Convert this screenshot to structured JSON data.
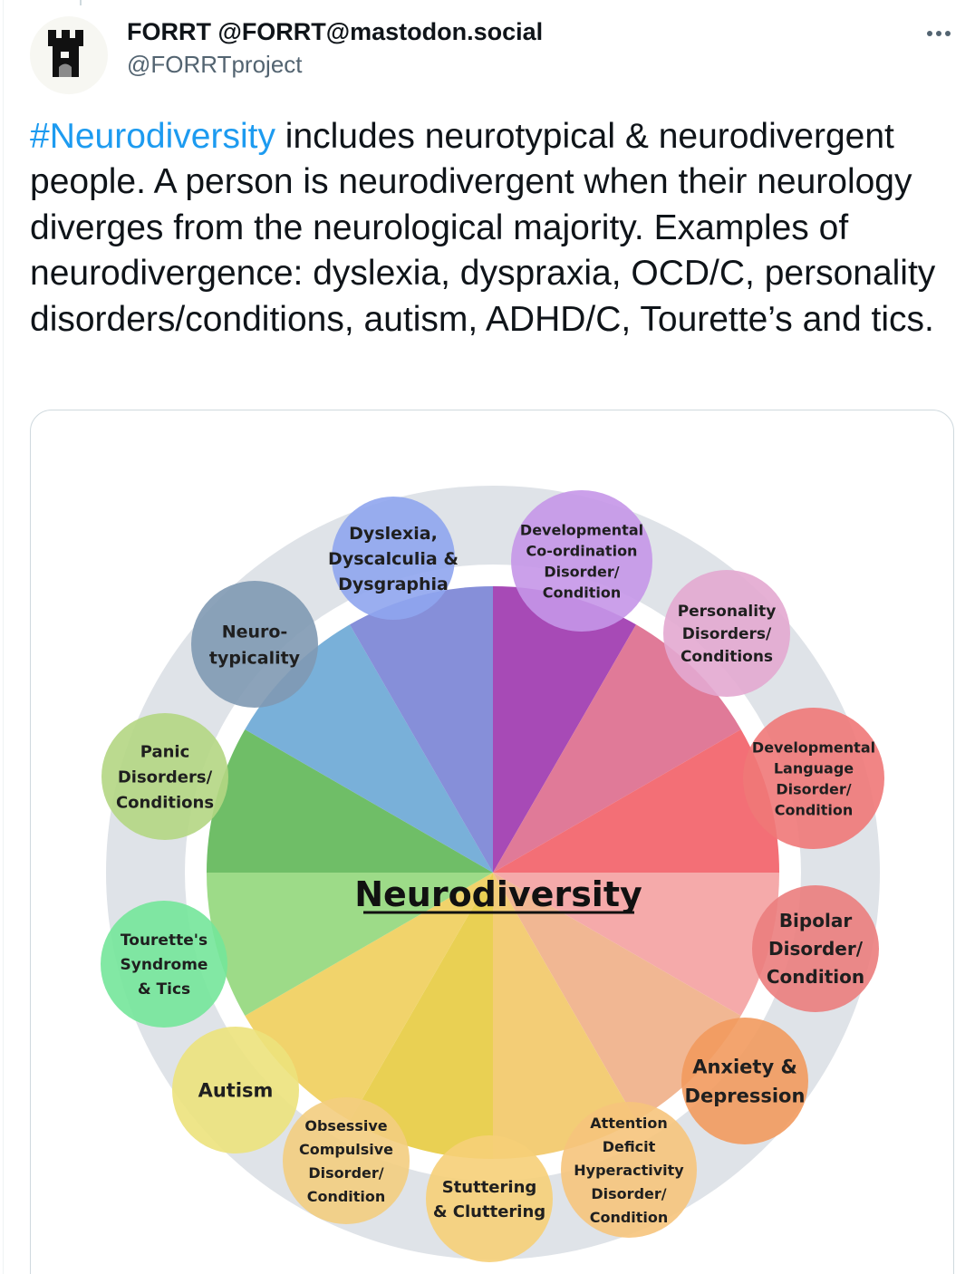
{
  "author": {
    "display_name": "FORRT @FORRT@mastodon.social",
    "handle": "@FORRTproject"
  },
  "tweet": {
    "hashtag": "#Neurodiversity",
    "text": " includes neurotypical & neurodivergent people. A person is neurodivergent when their neurology diverges from the neurological majority. Examples of neurodivergence: dyslexia, dyspraxia, OCD/C, personality disorders/conditions, autism, ADHD/C, Tourette’s and tics."
  },
  "diagram": {
    "title": "Neurodiversity",
    "colors": {
      "ring": "#dfe3e8",
      "wedges": [
        "#a03bb0",
        "#dd6f8f",
        "#f2636a",
        "#f4a3a3",
        "#f0b18a",
        "#f2c96a",
        "#e7cc44",
        "#f0cf5e",
        "#95d87e",
        "#63b85a",
        "#6ea9d6",
        "#7c85d6"
      ]
    },
    "nodes": [
      {
        "id": "dyslexia",
        "label": "Dyslexia,\nDyscalculia &\nDysgraphia",
        "color": "#8fa5ee"
      },
      {
        "id": "dcd",
        "label": "Developmental\nCo-ordination\nDisorder/\nCondition",
        "color": "#c596e8"
      },
      {
        "id": "personality",
        "label": "Personality\nDisorders/\nConditions",
        "color": "#e3a8d0"
      },
      {
        "id": "dld",
        "label": "Developmental\nLanguage\nDisorder/\nCondition",
        "color": "#f07878"
      },
      {
        "id": "bipolar",
        "label": "Bipolar\nDisorder/\nCondition",
        "color": "#eb7d7d"
      },
      {
        "id": "anxiety",
        "label": "Anxiety &\nDepression",
        "color": "#f29a5e"
      },
      {
        "id": "adhd",
        "label": "Attention\nDeficit\nHyperactivity\nDisorder/\nCondition",
        "color": "#f6c47c"
      },
      {
        "id": "stuttering",
        "label": "Stuttering\n& Cluttering",
        "color": "#f6cf78"
      },
      {
        "id": "ocd",
        "label": "Obsessive\nCompulsive\nDisorder/\nCondition",
        "color": "#f3cd80"
      },
      {
        "id": "autism",
        "label": "Autism",
        "color": "#ece27c"
      },
      {
        "id": "tourette",
        "label": "Tourette's\nSyndrome\n& Tics",
        "color": "#74e69a"
      },
      {
        "id": "panic",
        "label": "Panic\nDisorders/\nConditions",
        "color": "#b4d683"
      },
      {
        "id": "neurotypicality",
        "label": "Neuro-\ntypicality",
        "color": "#7f99b2"
      }
    ]
  }
}
